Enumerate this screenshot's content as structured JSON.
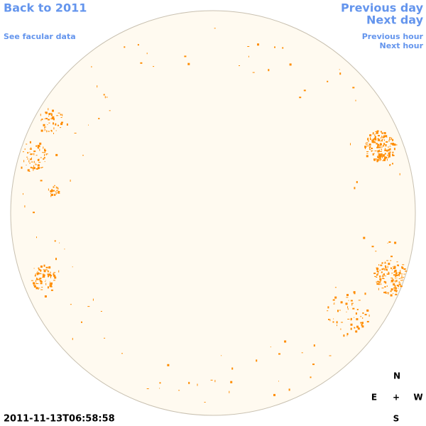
{
  "nav": {
    "back": "Back to 2011",
    "facular": "See facular data",
    "previous_day": "Previous day",
    "next_day": "Next day",
    "previous_hour": "Previous hour",
    "next_hour": "Next hour"
  },
  "timestamp": "2011-11-13T06:58:58",
  "compass": {
    "north": "N",
    "east": "E",
    "center": "+",
    "west": "W",
    "south": "S"
  }
}
